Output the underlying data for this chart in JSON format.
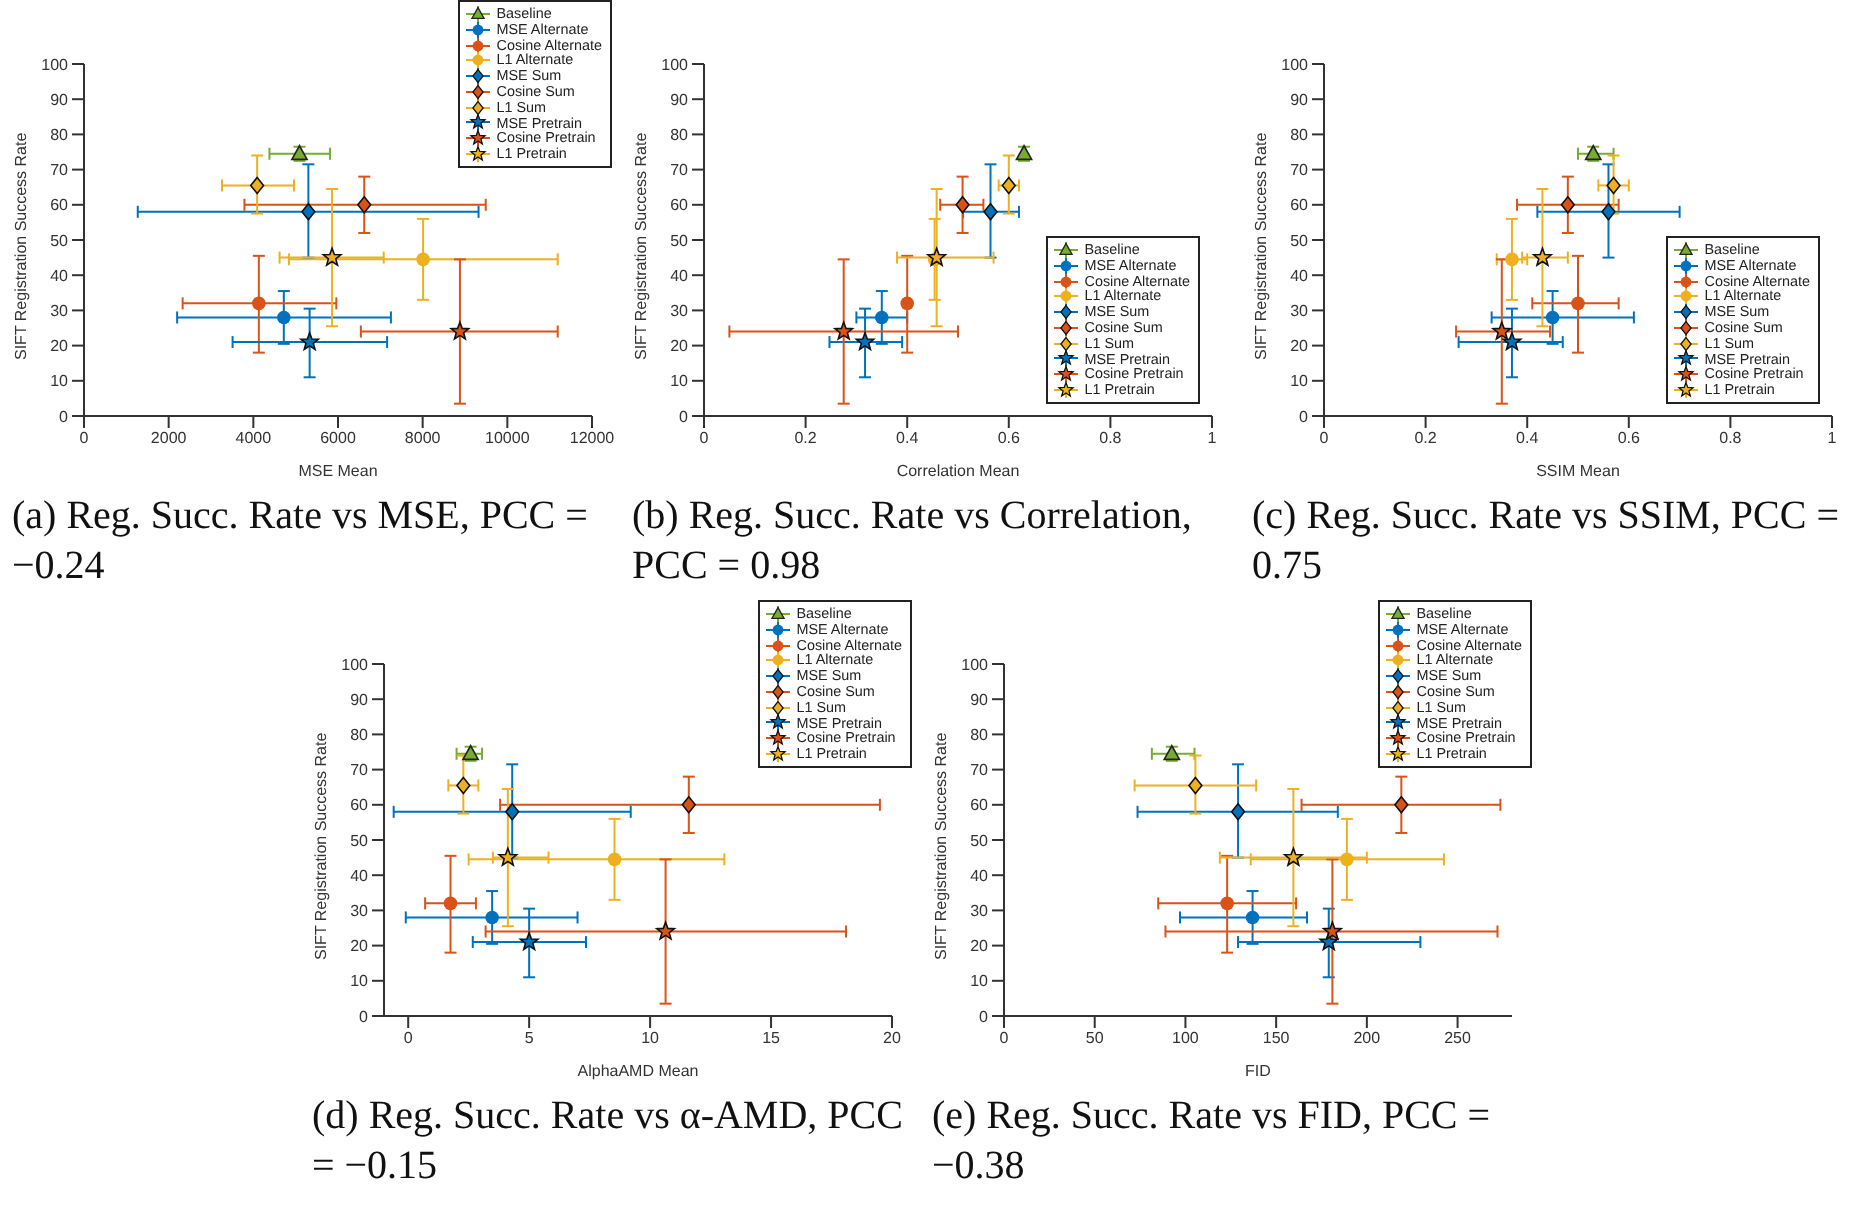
{
  "chart_data": [
    {
      "type": "scatter",
      "title": "(a) Reg. Succ. Rate vs MSE, PCC = −0.24",
      "xlabel": "MSE Mean",
      "ylabel": "SIFT Registration Success Rate",
      "xlim": [
        0,
        12000
      ],
      "xticks": [
        0,
        2000,
        4000,
        6000,
        8000,
        10000,
        12000
      ],
      "ylim": [
        0,
        100
      ],
      "yticks": [
        0,
        10,
        20,
        30,
        40,
        50,
        60,
        70,
        80,
        90,
        100
      ],
      "legend": "top right",
      "series": [
        {
          "name": "Baseline",
          "color": "#77ac30",
          "marker": "triangle",
          "x": [
            5090
          ],
          "values": [
            74.5
          ],
          "xerrors": [
            [
              4380,
              5810
            ]
          ],
          "errors": [
            [
              72.5,
              76.5
            ]
          ]
        },
        {
          "name": "MSE Alternate",
          "color": "#0072bd",
          "marker": "circle",
          "x": [
            4720
          ],
          "values": [
            28
          ],
          "xerrors": [
            [
              2200,
              7250
            ]
          ],
          "errors": [
            [
              20.5,
              35.5
            ]
          ]
        },
        {
          "name": "Cosine Alternate",
          "color": "#d95319",
          "marker": "circle",
          "x": [
            4130
          ],
          "values": [
            32
          ],
          "xerrors": [
            [
              2330,
              5960
            ]
          ],
          "errors": [
            [
              18,
              45.5
            ]
          ]
        },
        {
          "name": "L1 Alternate",
          "color": "#edb120",
          "marker": "circle",
          "x": [
            8010
          ],
          "values": [
            44.5
          ],
          "xerrors": [
            [
              4840,
              11190
            ]
          ],
          "errors": [
            [
              33,
              56
            ]
          ]
        },
        {
          "name": "MSE Sum",
          "color": "#0072bd",
          "marker": "diamond",
          "x": [
            5300
          ],
          "values": [
            58
          ],
          "xerrors": [
            [
              1270,
              9320
            ]
          ],
          "errors": [
            [
              45,
              71.5
            ]
          ]
        },
        {
          "name": "Cosine Sum",
          "color": "#d95319",
          "marker": "diamond",
          "x": [
            6620
          ],
          "values": [
            60
          ],
          "xerrors": [
            [
              3790,
              9490
            ]
          ],
          "errors": [
            [
              52,
              68
            ]
          ]
        },
        {
          "name": "L1 Sum",
          "color": "#edb120",
          "marker": "diamond",
          "x": [
            4090
          ],
          "values": [
            65.5
          ],
          "xerrors": [
            [
              3260,
              4960
            ]
          ],
          "errors": [
            [
              57.5,
              74
            ]
          ]
        },
        {
          "name": "MSE Pretrain",
          "color": "#0072bd",
          "marker": "star",
          "x": [
            5330
          ],
          "values": [
            21
          ],
          "xerrors": [
            [
              3510,
              7160
            ]
          ],
          "errors": [
            [
              11,
              30.5
            ]
          ]
        },
        {
          "name": "Cosine Pretrain",
          "color": "#d95319",
          "marker": "star",
          "x": [
            8880
          ],
          "values": [
            24
          ],
          "xerrors": [
            [
              6540,
              11190
            ]
          ],
          "errors": [
            [
              3.5,
              44.5
            ]
          ]
        },
        {
          "name": "L1 Pretrain",
          "color": "#edb120",
          "marker": "star",
          "x": [
            5860
          ],
          "values": [
            45
          ],
          "xerrors": [
            [
              4620,
              7080
            ]
          ],
          "errors": [
            [
              25.5,
              64.5
            ]
          ]
        }
      ]
    },
    {
      "type": "scatter",
      "title": "(b) Reg. Succ. Rate vs Correlation, PCC = 0.98",
      "xlabel": "Correlation Mean",
      "ylabel": "SIFT Registration Success Rate",
      "xlim": [
        0,
        1
      ],
      "xticks": [
        0,
        0.2,
        0.4,
        0.6,
        0.8,
        1
      ],
      "ylim": [
        0,
        100
      ],
      "yticks": [
        0,
        10,
        20,
        30,
        40,
        50,
        60,
        70,
        80,
        90,
        100
      ],
      "legend": "bottom right",
      "series": [
        {
          "name": "Baseline",
          "color": "#77ac30",
          "marker": "triangle",
          "x": [
            0.63
          ],
          "values": [
            74.5
          ],
          "xerrors": [
            null
          ],
          "errors": [
            [
              72.5,
              76.5
            ]
          ]
        },
        {
          "name": "MSE Alternate",
          "color": "#0072bd",
          "marker": "circle",
          "x": [
            0.35
          ],
          "values": [
            28
          ],
          "xerrors": [
            [
              0.3,
              0.4
            ]
          ],
          "errors": [
            [
              20.5,
              35.5
            ]
          ]
        },
        {
          "name": "Cosine Alternate",
          "color": "#d95319",
          "marker": "circle",
          "x": [
            0.4
          ],
          "values": [
            32
          ],
          "xerrors": [
            null
          ],
          "errors": [
            [
              18,
              45.5
            ]
          ]
        },
        {
          "name": "L1 Alternate",
          "color": "#edb120",
          "marker": "circle",
          "x": [
            0.454
          ],
          "values": [
            44.5
          ],
          "xerrors": [
            null
          ],
          "errors": [
            [
              33,
              56
            ]
          ]
        },
        {
          "name": "MSE Sum",
          "color": "#0072bd",
          "marker": "diamond",
          "x": [
            0.564
          ],
          "values": [
            58
          ],
          "xerrors": [
            [
              0.51,
              0.62
            ]
          ],
          "errors": [
            [
              45,
              71.5
            ]
          ]
        },
        {
          "name": "Cosine Sum",
          "color": "#d95319",
          "marker": "diamond",
          "x": [
            0.509
          ],
          "values": [
            60
          ],
          "xerrors": [
            [
              0.465,
              0.55
            ]
          ],
          "errors": [
            [
              52,
              68
            ]
          ]
        },
        {
          "name": "L1 Sum",
          "color": "#edb120",
          "marker": "diamond",
          "x": [
            0.6
          ],
          "values": [
            65.5
          ],
          "xerrors": [
            [
              0.58,
              0.62
            ]
          ],
          "errors": [
            [
              57.5,
              74
            ]
          ]
        },
        {
          "name": "MSE Pretrain",
          "color": "#0072bd",
          "marker": "star",
          "x": [
            0.317
          ],
          "values": [
            21
          ],
          "xerrors": [
            [
              0.247,
              0.39
            ]
          ],
          "errors": [
            [
              11,
              30.5
            ]
          ]
        },
        {
          "name": "Cosine Pretrain",
          "color": "#d95319",
          "marker": "star",
          "x": [
            0.275
          ],
          "values": [
            24
          ],
          "xerrors": [
            [
              0.05,
              0.5
            ]
          ],
          "errors": [
            [
              3.5,
              44.5
            ]
          ]
        },
        {
          "name": "L1 Pretrain",
          "color": "#edb120",
          "marker": "star",
          "x": [
            0.458
          ],
          "values": [
            45
          ],
          "xerrors": [
            [
              0.38,
              0.57
            ]
          ],
          "errors": [
            [
              25.5,
              64.5
            ]
          ]
        }
      ]
    },
    {
      "type": "scatter",
      "title": "(c) Reg. Succ. Rate vs SSIM, PCC = 0.75",
      "xlabel": "SSIM Mean",
      "ylabel": "SIFT Registration Success Rate",
      "xlim": [
        0,
        1
      ],
      "xticks": [
        0,
        0.2,
        0.4,
        0.6,
        0.8,
        1
      ],
      "ylim": [
        0,
        100
      ],
      "yticks": [
        0,
        10,
        20,
        30,
        40,
        50,
        60,
        70,
        80,
        90,
        100
      ],
      "legend": "bottom right",
      "series": [
        {
          "name": "Baseline",
          "color": "#77ac30",
          "marker": "triangle",
          "x": [
            0.53
          ],
          "values": [
            74.5
          ],
          "xerrors": [
            [
              0.5,
              0.57
            ]
          ],
          "errors": [
            [
              72.5,
              76.5
            ]
          ]
        },
        {
          "name": "MSE Alternate",
          "color": "#0072bd",
          "marker": "circle",
          "x": [
            0.45
          ],
          "values": [
            28
          ],
          "xerrors": [
            [
              0.33,
              0.61
            ]
          ],
          "errors": [
            [
              20.5,
              35.5
            ]
          ]
        },
        {
          "name": "Cosine Alternate",
          "color": "#d95319",
          "marker": "circle",
          "x": [
            0.5
          ],
          "values": [
            32
          ],
          "xerrors": [
            [
              0.41,
              0.58
            ]
          ],
          "errors": [
            [
              18,
              45.5
            ]
          ]
        },
        {
          "name": "L1 Alternate",
          "color": "#edb120",
          "marker": "circle",
          "x": [
            0.37
          ],
          "values": [
            44.5
          ],
          "xerrors": [
            [
              0.34,
              0.4
            ]
          ],
          "errors": [
            [
              33,
              56
            ]
          ]
        },
        {
          "name": "MSE Sum",
          "color": "#0072bd",
          "marker": "diamond",
          "x": [
            0.56
          ],
          "values": [
            58
          ],
          "xerrors": [
            [
              0.42,
              0.7
            ]
          ],
          "errors": [
            [
              45,
              71.5
            ]
          ]
        },
        {
          "name": "Cosine Sum",
          "color": "#d95319",
          "marker": "diamond",
          "x": [
            0.48
          ],
          "values": [
            60
          ],
          "xerrors": [
            [
              0.38,
              0.58
            ]
          ],
          "errors": [
            [
              52,
              68
            ]
          ]
        },
        {
          "name": "L1 Sum",
          "color": "#edb120",
          "marker": "diamond",
          "x": [
            0.57
          ],
          "values": [
            65.5
          ],
          "xerrors": [
            [
              0.54,
              0.6
            ]
          ],
          "errors": [
            [
              57.5,
              74
            ]
          ]
        },
        {
          "name": "MSE Pretrain",
          "color": "#0072bd",
          "marker": "star",
          "x": [
            0.37
          ],
          "values": [
            21
          ],
          "xerrors": [
            [
              0.265,
              0.47
            ]
          ],
          "errors": [
            [
              11,
              30.5
            ]
          ]
        },
        {
          "name": "Cosine Pretrain",
          "color": "#d95319",
          "marker": "star",
          "x": [
            0.35
          ],
          "values": [
            24
          ],
          "xerrors": [
            [
              0.26,
              0.445
            ]
          ],
          "errors": [
            [
              3.5,
              44.5
            ]
          ]
        },
        {
          "name": "L1 Pretrain",
          "color": "#edb120",
          "marker": "star",
          "x": [
            0.43
          ],
          "values": [
            45
          ],
          "xerrors": [
            [
              0.39,
              0.48
            ]
          ],
          "errors": [
            [
              25.5,
              64.5
            ]
          ]
        }
      ]
    },
    {
      "type": "scatter",
      "title": "(d) Reg. Succ. Rate vs α-AMD, PCC = −0.15",
      "xlabel": "AlphaAMD Mean",
      "ylabel": "SIFT Registration Success Rate",
      "xlim": [
        -1,
        20
      ],
      "xticks": [
        0,
        5,
        10,
        15,
        20
      ],
      "ylim": [
        0,
        100
      ],
      "yticks": [
        0,
        10,
        20,
        30,
        40,
        50,
        60,
        70,
        80,
        90,
        100
      ],
      "legend": "top right",
      "series": [
        {
          "name": "Baseline",
          "color": "#77ac30",
          "marker": "triangle",
          "x": [
            2.58
          ],
          "values": [
            74.5
          ],
          "xerrors": [
            [
              2,
              3.05
            ]
          ],
          "errors": [
            [
              72.5,
              76.5
            ]
          ]
        },
        {
          "name": "MSE Alternate",
          "color": "#0072bd",
          "marker": "circle",
          "x": [
            3.47
          ],
          "values": [
            28
          ],
          "xerrors": [
            [
              -0.1,
              7
            ]
          ],
          "errors": [
            [
              20.5,
              35.5
            ]
          ]
        },
        {
          "name": "Cosine Alternate",
          "color": "#d95319",
          "marker": "circle",
          "x": [
            1.75
          ],
          "values": [
            32
          ],
          "xerrors": [
            [
              0.7,
              2.8
            ]
          ],
          "errors": [
            [
              18,
              45.5
            ]
          ]
        },
        {
          "name": "L1 Alternate",
          "color": "#edb120",
          "marker": "circle",
          "x": [
            8.53
          ],
          "values": [
            44.5
          ],
          "xerrors": [
            [
              2.5,
              13.07
            ]
          ],
          "errors": [
            [
              33,
              56
            ]
          ]
        },
        {
          "name": "MSE Sum",
          "color": "#0072bd",
          "marker": "diamond",
          "x": [
            4.3
          ],
          "values": [
            58
          ],
          "xerrors": [
            [
              -0.6,
              9.2
            ]
          ],
          "errors": [
            [
              45,
              71.5
            ]
          ]
        },
        {
          "name": "Cosine Sum",
          "color": "#d95319",
          "marker": "diamond",
          "x": [
            11.6
          ],
          "values": [
            60
          ],
          "xerrors": [
            [
              3.8,
              19.5
            ]
          ],
          "errors": [
            [
              52,
              68
            ]
          ]
        },
        {
          "name": "L1 Sum",
          "color": "#edb120",
          "marker": "diamond",
          "x": [
            2.28
          ],
          "values": [
            65.5
          ],
          "xerrors": [
            [
              1.66,
              2.9
            ]
          ],
          "errors": [
            [
              57.5,
              74
            ]
          ]
        },
        {
          "name": "MSE Pretrain",
          "color": "#0072bd",
          "marker": "star",
          "x": [
            5
          ],
          "values": [
            21
          ],
          "xerrors": [
            [
              2.67,
              7.35
            ]
          ],
          "errors": [
            [
              11,
              30.5
            ]
          ]
        },
        {
          "name": "Cosine Pretrain",
          "color": "#d95319",
          "marker": "star",
          "x": [
            10.64
          ],
          "values": [
            24
          ],
          "xerrors": [
            [
              3.2,
              18.1
            ]
          ],
          "errors": [
            [
              3.5,
              44.5
            ]
          ]
        },
        {
          "name": "L1 Pretrain",
          "color": "#edb120",
          "marker": "star",
          "x": [
            4.12
          ],
          "values": [
            45
          ],
          "xerrors": [
            [
              3.5,
              5.8
            ]
          ],
          "errors": [
            [
              25.5,
              64.5
            ]
          ]
        }
      ]
    },
    {
      "type": "scatter",
      "title": "(e) Reg. Succ. Rate vs FID, PCC = −0.38",
      "xlabel": "FID",
      "ylabel": "SIFT Registration Success Rate",
      "xlim": [
        0,
        280
      ],
      "xticks": [
        0,
        50,
        100,
        150,
        200,
        250
      ],
      "ylim": [
        0,
        100
      ],
      "yticks": [
        0,
        10,
        20,
        30,
        40,
        50,
        60,
        70,
        80,
        90,
        100
      ],
      "legend": "top right",
      "series": [
        {
          "name": "Baseline",
          "color": "#77ac30",
          "marker": "triangle",
          "x": [
            92.5
          ],
          "values": [
            74.5
          ],
          "xerrors": [
            [
              81.5,
              105
            ]
          ],
          "errors": [
            [
              72.5,
              76.5
            ]
          ]
        },
        {
          "name": "MSE Alternate",
          "color": "#0072bd",
          "marker": "circle",
          "x": [
            137
          ],
          "values": [
            28
          ],
          "xerrors": [
            [
              97,
              167
            ]
          ],
          "errors": [
            [
              20.5,
              35.5
            ]
          ]
        },
        {
          "name": "Cosine Alternate",
          "color": "#d95319",
          "marker": "circle",
          "x": [
            123
          ],
          "values": [
            32
          ],
          "xerrors": [
            [
              85,
              161
            ]
          ],
          "errors": [
            [
              18,
              45.5
            ]
          ]
        },
        {
          "name": "L1 Alternate",
          "color": "#edb120",
          "marker": "circle",
          "x": [
            189
          ],
          "values": [
            44.5
          ],
          "xerrors": [
            [
              136,
              242.5
            ]
          ],
          "errors": [
            [
              33,
              56
            ]
          ]
        },
        {
          "name": "MSE Sum",
          "color": "#0072bd",
          "marker": "diamond",
          "x": [
            129
          ],
          "values": [
            58
          ],
          "xerrors": [
            [
              73.6,
              184
            ]
          ],
          "errors": [
            [
              45,
              71.5
            ]
          ]
        },
        {
          "name": "Cosine Sum",
          "color": "#d95319",
          "marker": "diamond",
          "x": [
            219
          ],
          "values": [
            60
          ],
          "xerrors": [
            [
              164,
              273.6
            ]
          ],
          "errors": [
            [
              52,
              68
            ]
          ]
        },
        {
          "name": "L1 Sum",
          "color": "#edb120",
          "marker": "diamond",
          "x": [
            105.5
          ],
          "values": [
            65.5
          ],
          "xerrors": [
            [
              72,
              139
            ]
          ],
          "errors": [
            [
              57.5,
              74
            ]
          ]
        },
        {
          "name": "MSE Pretrain",
          "color": "#0072bd",
          "marker": "star",
          "x": [
            179
          ],
          "values": [
            21
          ],
          "xerrors": [
            [
              129,
              229.5
            ]
          ],
          "errors": [
            [
              11,
              30.5
            ]
          ]
        },
        {
          "name": "Cosine Pretrain",
          "color": "#d95319",
          "marker": "star",
          "x": [
            181
          ],
          "values": [
            24
          ],
          "xerrors": [
            [
              89,
              272
            ]
          ],
          "errors": [
            [
              3.5,
              44.5
            ]
          ]
        },
        {
          "name": "L1 Pretrain",
          "color": "#edb120",
          "marker": "star",
          "x": [
            159.5
          ],
          "values": [
            45
          ],
          "xerrors": [
            [
              119,
              200
            ]
          ],
          "errors": [
            [
              25.5,
              64.5
            ]
          ]
        }
      ]
    }
  ]
}
